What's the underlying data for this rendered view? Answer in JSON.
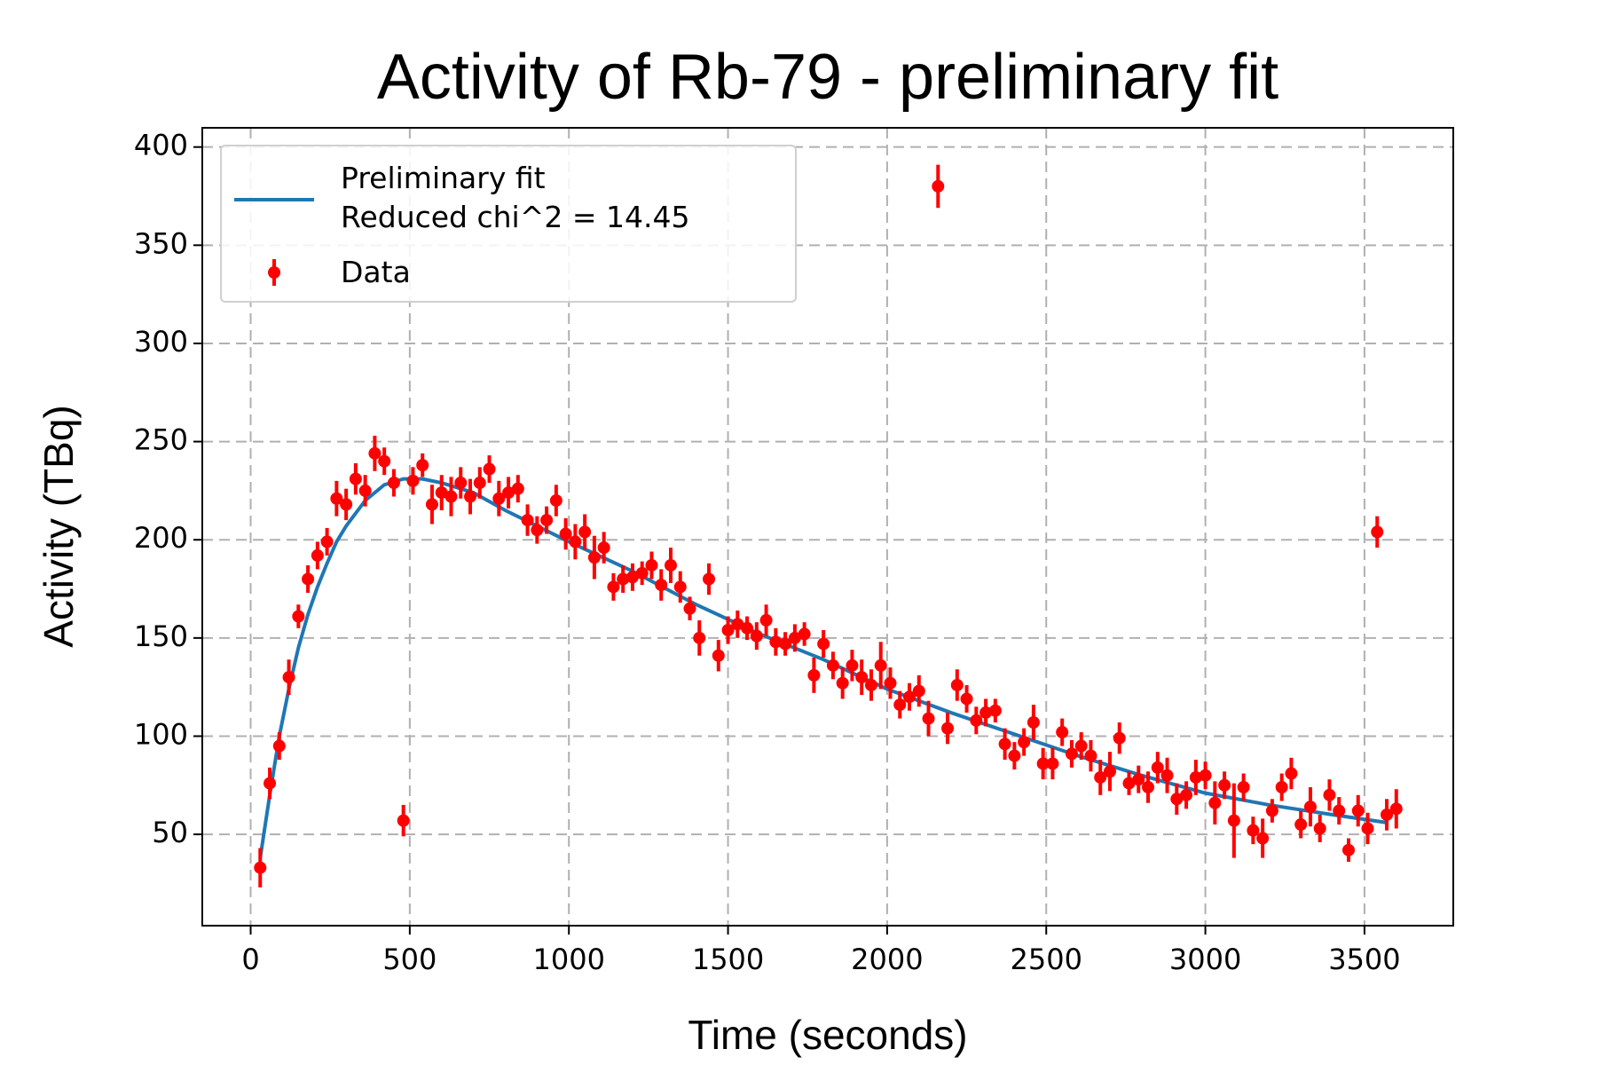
{
  "chart_data": {
    "type": "errorbar",
    "title": "Activity of Rb-79 - preliminary fit",
    "xlabel": "Time (seconds)",
    "ylabel": "Activity (TBq)",
    "xlim": [
      -152,
      3779
    ],
    "ylim": [
      3.5,
      409.8
    ],
    "xticks": [
      0,
      500,
      1000,
      1500,
      2000,
      2500,
      3000,
      3500
    ],
    "yticks": [
      50,
      100,
      150,
      200,
      250,
      300,
      350,
      400
    ],
    "grid": true,
    "legend": "upper left",
    "fit": {
      "name": "Preliminary fit\nReduced chi^2 = 14.45",
      "color": "#1f77b4",
      "x": [
        30,
        60,
        90,
        120,
        150,
        180,
        210,
        240,
        270,
        300,
        360,
        420,
        480,
        540,
        600,
        700,
        800,
        900,
        1000,
        1200,
        1400,
        1600,
        1800,
        2000,
        2200,
        2400,
        2600,
        2800,
        3000,
        3200,
        3400,
        3570
      ],
      "values": [
        38,
        70,
        100,
        124,
        145,
        162,
        176,
        188,
        199,
        207,
        220,
        228,
        231,
        231,
        229,
        224,
        215,
        207,
        199,
        184,
        167,
        152,
        139,
        124,
        112,
        101,
        90,
        80,
        71,
        65,
        60,
        56
      ]
    },
    "data": {
      "name": "Data",
      "color": "#ff0000",
      "x": [
        30,
        60,
        90,
        120,
        150,
        180,
        210,
        240,
        270,
        300,
        330,
        360,
        390,
        420,
        450,
        480,
        510,
        540,
        570,
        600,
        630,
        660,
        690,
        720,
        750,
        780,
        810,
        840,
        870,
        900,
        930,
        960,
        990,
        1020,
        1050,
        1080,
        1110,
        1140,
        1170,
        1200,
        1230,
        1260,
        1290,
        1320,
        1350,
        1380,
        1410,
        1440,
        1470,
        1500,
        1530,
        1560,
        1590,
        1620,
        1650,
        1680,
        1710,
        1740,
        1770,
        1800,
        1830,
        1860,
        1890,
        1920,
        1950,
        1980,
        2010,
        2040,
        2070,
        2100,
        2130,
        2160,
        2190,
        2220,
        2250,
        2280,
        2310,
        2340,
        2370,
        2400,
        2430,
        2460,
        2490,
        2520,
        2550,
        2580,
        2610,
        2640,
        2670,
        2700,
        2730,
        2760,
        2790,
        2820,
        2850,
        2880,
        2910,
        2940,
        2970,
        3000,
        3030,
        3060,
        3090,
        3120,
        3150,
        3180,
        3210,
        3240,
        3270,
        3300,
        3330,
        3360,
        3390,
        3420,
        3450,
        3480,
        3510,
        3540,
        3570,
        3600
      ],
      "values": [
        33,
        76,
        95,
        130,
        161,
        180,
        192,
        199,
        221,
        218,
        231,
        225,
        244,
        240,
        229,
        57,
        230,
        238,
        218,
        224,
        222,
        229,
        222,
        229,
        236,
        221,
        224,
        226,
        210,
        205,
        210,
        220,
        203,
        199,
        204,
        191,
        196,
        176,
        180,
        181,
        183,
        187,
        177,
        187,
        176,
        165,
        150,
        180,
        141,
        154,
        157,
        155,
        151,
        159,
        148,
        147,
        150,
        152,
        131,
        147,
        136,
        127,
        136,
        130,
        126,
        136,
        127,
        116,
        120,
        123,
        109,
        380,
        104,
        126,
        119,
        108,
        112,
        113,
        96,
        90,
        97,
        107,
        86,
        86,
        102,
        91,
        95,
        90,
        79,
        82,
        99,
        76,
        78,
        74,
        84,
        80,
        68,
        70,
        79,
        80,
        66,
        75,
        57,
        74,
        52,
        48,
        62,
        74,
        81,
        55,
        64,
        53,
        70,
        62,
        42,
        62,
        53,
        204,
        60,
        63
      ],
      "errors": [
        10,
        8,
        7,
        9,
        6,
        7,
        7,
        7,
        9,
        8,
        8,
        8,
        9,
        7,
        7,
        8,
        7,
        6,
        10,
        9,
        10,
        8,
        9,
        8,
        7,
        9,
        8,
        7,
        8,
        7,
        7,
        8,
        8,
        9,
        9,
        11,
        8,
        7,
        7,
        7,
        6,
        7,
        8,
        9,
        8,
        6,
        9,
        8,
        8,
        7,
        7,
        6,
        7,
        8,
        7,
        6,
        7,
        6,
        9,
        7,
        7,
        8,
        8,
        9,
        8,
        12,
        8,
        7,
        7,
        8,
        9,
        11,
        8,
        8,
        7,
        7,
        7,
        6,
        8,
        7,
        7,
        9,
        8,
        8,
        7,
        7,
        7,
        8,
        9,
        10,
        8,
        6,
        7,
        8,
        8,
        9,
        8,
        7,
        9,
        7,
        11,
        7,
        19,
        7,
        7,
        10,
        6,
        7,
        8,
        7,
        10,
        7,
        8,
        7,
        6,
        8,
        8,
        8,
        8,
        10
      ]
    }
  }
}
